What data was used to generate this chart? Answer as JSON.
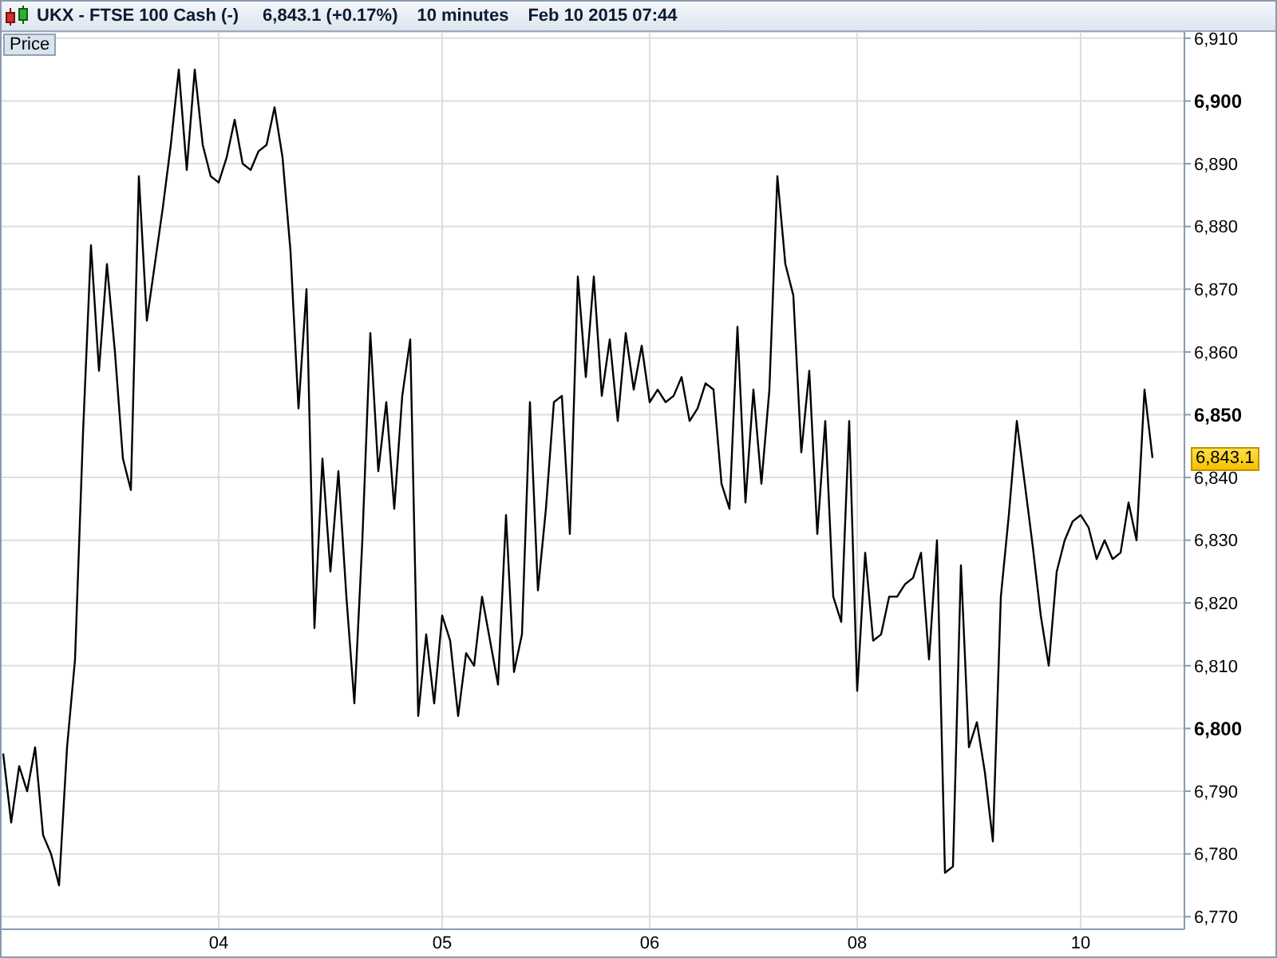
{
  "chart_data": {
    "type": "line",
    "title": "UKX - FTSE 100 Cash (-)",
    "subtitle": "6,843.1 (+0.17%)",
    "annotations": [
      "10 minutes",
      "Feb 10 2015 07:44",
      "6,843.1"
    ],
    "categories": [
      null,
      null,
      null,
      null,
      null,
      null,
      null,
      null,
      null,
      null,
      null,
      null,
      null,
      null,
      null,
      null,
      null,
      null,
      null,
      null,
      null,
      null,
      null,
      null,
      null,
      null,
      null,
      "04",
      null,
      null,
      null,
      null,
      null,
      null,
      null,
      null,
      null,
      null,
      null,
      null,
      null,
      null,
      null,
      null,
      null,
      null,
      null,
      null,
      null,
      null,
      null,
      null,
      null,
      null,
      null,
      "05",
      null,
      null,
      null,
      null,
      null,
      null,
      null,
      null,
      null,
      null,
      null,
      null,
      null,
      null,
      null,
      null,
      null,
      null,
      null,
      null,
      null,
      null,
      null,
      null,
      null,
      "06",
      null,
      null,
      null,
      null,
      null,
      null,
      null,
      null,
      null,
      null,
      null,
      null,
      null,
      null,
      null,
      null,
      null,
      null,
      null,
      null,
      null,
      null,
      null,
      null,
      null,
      "08",
      null,
      null,
      null,
      null,
      null,
      null,
      null,
      null,
      null,
      null,
      null,
      null,
      null,
      null,
      null,
      null,
      null,
      null,
      null,
      null,
      null,
      null,
      null,
      null,
      null,
      null,
      null,
      "10",
      null,
      null,
      null,
      null,
      null,
      null,
      null,
      null,
      null
    ],
    "series": [
      {
        "name": "Price",
        "color": "#000000",
        "values": [
          6796,
          6785,
          6794,
          6790,
          6797,
          6783,
          6780,
          6775,
          6797,
          6811,
          6847,
          6877,
          6857,
          6874,
          6860,
          6843,
          6838,
          6888,
          6865,
          6874,
          6883,
          6893,
          6905,
          6889,
          6905,
          6893,
          6888,
          6887,
          6891,
          6897,
          6890,
          6889,
          6892,
          6893,
          6899,
          6891,
          6876,
          6851,
          6870,
          6816,
          6843,
          6825,
          6841,
          6821,
          6804,
          6830,
          6863,
          6841,
          6852,
          6835,
          6853,
          6862,
          6802,
          6815,
          6804,
          6818,
          6814,
          6802,
          6812,
          6810,
          6821,
          6814,
          6807,
          6834,
          6809,
          6815,
          6852,
          6822,
          6835,
          6852,
          6853,
          6831,
          6872,
          6856,
          6872,
          6853,
          6862,
          6849,
          6863,
          6854,
          6861,
          6852,
          6854,
          6852,
          6853,
          6856,
          6849,
          6851,
          6855,
          6854,
          6839,
          6835,
          6864,
          6836,
          6854,
          6839,
          6854,
          6888,
          6874,
          6869,
          6844,
          6857,
          6831,
          6849,
          6821,
          6817,
          6849,
          6806,
          6828,
          6814,
          6815,
          6821,
          6821,
          6823,
          6824,
          6828,
          6811,
          6830,
          6777,
          6778,
          6826,
          6797,
          6801,
          6793,
          6782,
          6821,
          6834,
          6849,
          6839,
          6829,
          6818,
          6810,
          6825,
          6830,
          6833,
          6834,
          6832,
          6827,
          6830,
          6827,
          6828,
          6836,
          6830,
          6854,
          6843.1
        ]
      }
    ],
    "ylim": [
      6768,
      6911
    ],
    "yticks": [
      {
        "value": 6770,
        "label": "6,770"
      },
      {
        "value": 6780,
        "label": "6,780"
      },
      {
        "value": 6790,
        "label": "6,790"
      },
      {
        "value": 6800,
        "label": "6,800"
      },
      {
        "value": 6810,
        "label": "6,810"
      },
      {
        "value": 6820,
        "label": "6,820"
      },
      {
        "value": 6830,
        "label": "6,830"
      },
      {
        "value": 6840,
        "label": "6,840"
      },
      {
        "value": 6850,
        "label": "6,850"
      },
      {
        "value": 6860,
        "label": "6,860"
      },
      {
        "value": 6870,
        "label": "6,870"
      },
      {
        "value": 6880,
        "label": "6,880"
      },
      {
        "value": 6890,
        "label": "6,890"
      },
      {
        "value": 6900,
        "label": "6,900"
      },
      {
        "value": 6910,
        "label": "6,910"
      }
    ],
    "grid": true,
    "legend": "top left",
    "marker": "none"
  }
}
